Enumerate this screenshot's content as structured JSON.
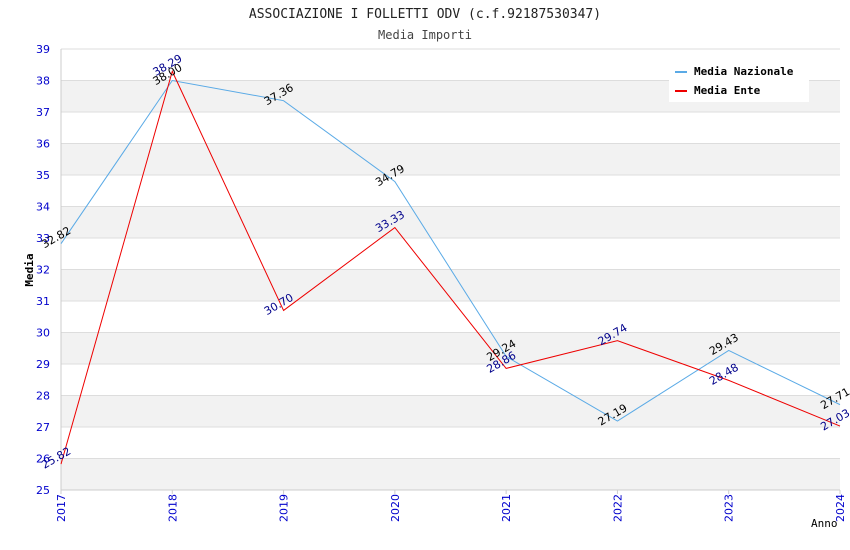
{
  "chart_data": {
    "type": "line",
    "title": "ASSOCIAZIONE I FOLLETTI ODV (c.f.92187530347)",
    "subtitle": "Media Importi",
    "xlabel": "Anno",
    "ylabel": "Media",
    "ylim": [
      25,
      39
    ],
    "yticks": [
      "25",
      "26",
      "27",
      "28",
      "29",
      "30",
      "31",
      "32",
      "33",
      "34",
      "35",
      "36",
      "37",
      "38",
      "39"
    ],
    "categories": [
      "2017",
      "2018",
      "2019",
      "2020",
      "2021",
      "2022",
      "2023",
      "2024"
    ],
    "legend_position": "top-right",
    "grid": true,
    "series": [
      {
        "name": "Media Nazionale",
        "color": "#5aaae6",
        "label_color": "#000000",
        "values": [
          32.82,
          38.0,
          37.36,
          34.79,
          29.24,
          27.19,
          29.43,
          27.71
        ],
        "labels": [
          "32.82",
          "38.00",
          "37.36",
          "34.79",
          "29.24",
          "27.19",
          "29.43",
          "27.71"
        ]
      },
      {
        "name": "Media Ente",
        "color": "#ee0000",
        "label_color": "#00008b",
        "values": [
          25.82,
          38.29,
          30.7,
          33.33,
          28.86,
          29.74,
          28.48,
          27.03
        ],
        "labels": [
          "25.82",
          "38.29",
          "30.70",
          "33.33",
          "28.86",
          "29.74",
          "28.48",
          "27.03"
        ]
      }
    ]
  }
}
